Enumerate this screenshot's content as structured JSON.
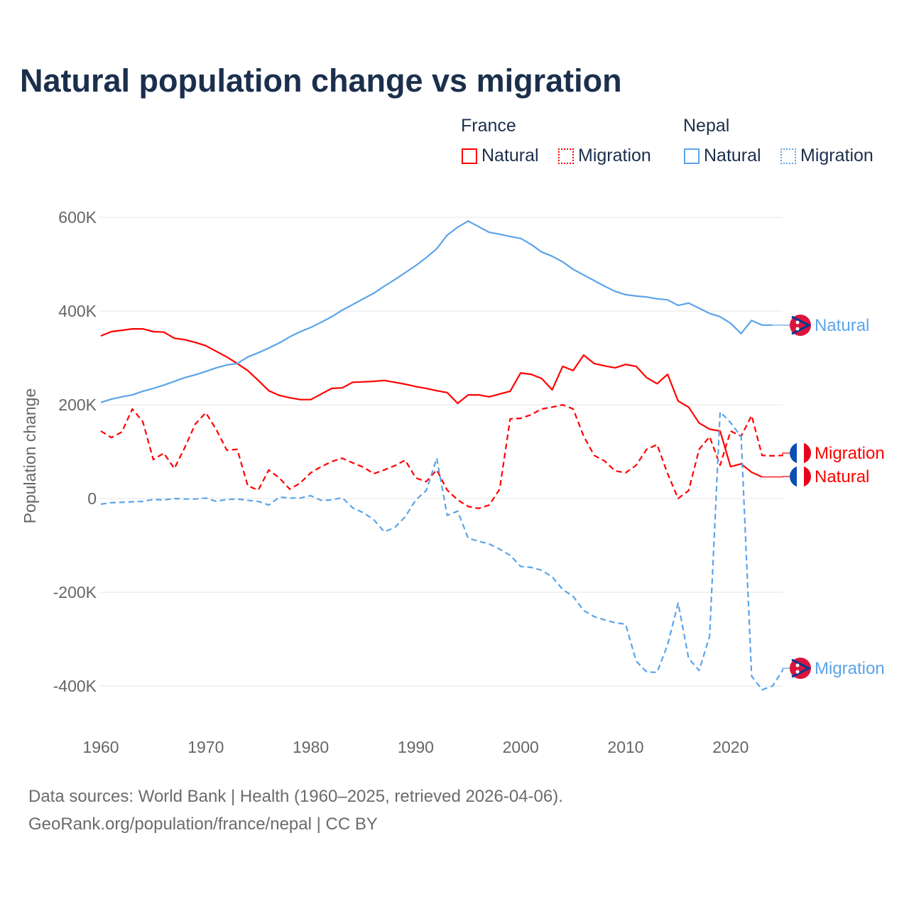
{
  "title": "Natural population change vs migration",
  "legend": {
    "groups": [
      {
        "name": "France",
        "items": [
          {
            "label": "Natural",
            "style": "solid"
          },
          {
            "label": "Migration",
            "style": "dotted"
          }
        ],
        "color": "#ff0000"
      },
      {
        "name": "Nepal",
        "items": [
          {
            "label": "Natural",
            "style": "solid"
          },
          {
            "label": "Migration",
            "style": "dotted"
          }
        ],
        "color": "#5ba4ea"
      }
    ]
  },
  "footer": {
    "line1": "Data sources: World Bank | Health (1960–2025, retrieved 2026-04-06).",
    "line2": "GeoRank.org/population/france/nepal | CC BY"
  },
  "chart_data": {
    "type": "line",
    "title": "Natural population change vs migration",
    "xlabel": "",
    "ylabel": "Population change",
    "xlim": [
      1960,
      2025
    ],
    "ylim": [
      -500000,
      650000
    ],
    "x_ticks": [
      1960,
      1970,
      1980,
      1990,
      2000,
      2010,
      2020
    ],
    "x_tick_labels": [
      "1960",
      "1970",
      "1980",
      "1990",
      "2000",
      "2010",
      "2020"
    ],
    "y_ticks": [
      -400000,
      -200000,
      0,
      200000,
      400000,
      600000
    ],
    "y_tick_labels": [
      "-400K",
      "-200K",
      "0",
      "200K",
      "400K",
      "600K"
    ],
    "grid": true,
    "legend_position": "top-right",
    "x_start": 1960,
    "units": "thousands",
    "series": [
      {
        "name": "France Natural",
        "label": "Natural",
        "country": "France",
        "color": "#ff0000",
        "dash": false,
        "values": [
          347,
          356,
          359,
          362,
          362,
          356,
          355,
          342,
          339,
          333,
          326,
          314,
          302,
          288,
          273,
          252,
          230,
          220,
          215,
          211,
          211,
          223,
          235,
          236,
          248,
          249,
          250,
          252,
          248,
          244,
          239,
          235,
          230,
          226,
          203,
          221,
          221,
          217,
          223,
          229,
          268,
          265,
          256,
          232,
          282,
          273,
          306,
          288,
          283,
          279,
          286,
          282,
          258,
          245,
          265,
          208,
          195,
          161,
          148,
          144,
          68,
          74,
          56,
          46
        ]
      },
      {
        "name": "France Migration",
        "label": "Migration",
        "country": "France",
        "color": "#ff0000",
        "dash": true,
        "values": [
          144,
          130,
          142,
          191,
          164,
          83,
          97,
          64,
          109,
          159,
          183,
          147,
          103,
          105,
          27,
          18,
          61,
          44,
          20,
          33,
          55,
          68,
          79,
          86,
          76,
          67,
          53,
          61,
          70,
          82,
          44,
          36,
          61,
          18,
          -3,
          -17,
          -21,
          -14,
          20,
          170,
          171,
          179,
          191,
          195,
          200,
          191,
          133,
          92,
          80,
          59,
          55,
          71,
          105,
          115,
          53,
          0,
          17,
          105,
          132,
          71,
          144,
          133,
          177,
          92,
          91,
          92
        ]
      },
      {
        "name": "Nepal Natural",
        "label": "Natural",
        "country": "Nepal",
        "color": "#5ba4ea",
        "dash": false,
        "values": [
          205,
          212,
          217,
          221,
          229,
          235,
          242,
          250,
          258,
          264,
          271,
          279,
          285,
          288,
          302,
          311,
          321,
          332,
          345,
          356,
          365,
          376,
          388,
          402,
          414,
          426,
          438,
          453,
          467,
          482,
          497,
          514,
          533,
          562,
          579,
          592,
          580,
          568,
          564,
          559,
          555,
          542,
          526,
          517,
          505,
          489,
          477,
          465,
          453,
          442,
          435,
          432,
          430,
          426,
          424,
          412,
          417,
          406,
          395,
          388,
          374,
          352,
          380,
          370,
          370
        ]
      },
      {
        "name": "Nepal Migration",
        "label": "Migration",
        "country": "Nepal",
        "color": "#5ba4ea",
        "dash": true,
        "values": [
          -12,
          -9,
          -8,
          -7,
          -6,
          -2,
          -3,
          0,
          -1,
          -1,
          1,
          -6,
          -2,
          -1,
          -4,
          -6,
          -14,
          3,
          1,
          1,
          6,
          -4,
          -3,
          2,
          -20,
          -30,
          -45,
          -71,
          -62,
          -39,
          -3,
          17,
          86,
          -36,
          -27,
          -85,
          -91,
          -97,
          -108,
          -121,
          -145,
          -147,
          -153,
          -167,
          -194,
          -209,
          -239,
          -252,
          -259,
          -265,
          -268,
          -347,
          -370,
          -371,
          -312,
          -223,
          -341,
          -367,
          -294,
          185,
          162,
          132,
          -379,
          -408,
          -400,
          -365
        ]
      }
    ],
    "end_labels": [
      {
        "text": "Natural",
        "country": "Nepal",
        "flag": "nepal-flag",
        "value": 370
      },
      {
        "text": "Migration",
        "country": "France",
        "flag": "france-flag",
        "value": 92
      },
      {
        "text": "Natural",
        "country": "France",
        "flag": "france-flag",
        "value": 46
      },
      {
        "text": "Migration",
        "country": "Nepal",
        "flag": "nepal-flag",
        "value": -365
      }
    ]
  }
}
